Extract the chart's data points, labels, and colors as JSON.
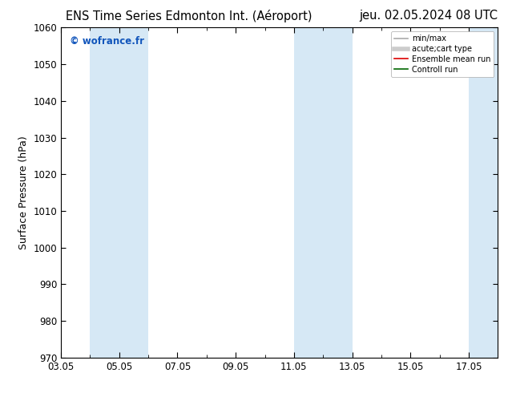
{
  "title_left": "ENS Time Series Edmonton Int. (Aéroport)",
  "title_right": "jeu. 02.05.2024 08 UTC",
  "ylabel": "Surface Pressure (hPa)",
  "ylim": [
    970,
    1060
  ],
  "yticks": [
    970,
    980,
    990,
    1000,
    1010,
    1020,
    1030,
    1040,
    1050,
    1060
  ],
  "xtick_labels": [
    "03.05",
    "05.05",
    "07.05",
    "09.05",
    "11.05",
    "13.05",
    "15.05",
    "17.05"
  ],
  "band_color": "#d6e8f5",
  "watermark": "© wofrance.fr",
  "watermark_color": "#1155bb",
  "legend_entries": [
    {
      "label": "min/max",
      "color": "#aaaaaa",
      "lw": 1.2
    },
    {
      "label": "acute;cart type",
      "color": "#cccccc",
      "lw": 4
    },
    {
      "label": "Ensemble mean run",
      "color": "#dd0000",
      "lw": 1.2
    },
    {
      "label": "Controll run",
      "color": "#006600",
      "lw": 1.2
    }
  ],
  "bg_color": "#ffffff",
  "title_fontsize": 10.5,
  "tick_fontsize": 8.5,
  "ylabel_fontsize": 9
}
